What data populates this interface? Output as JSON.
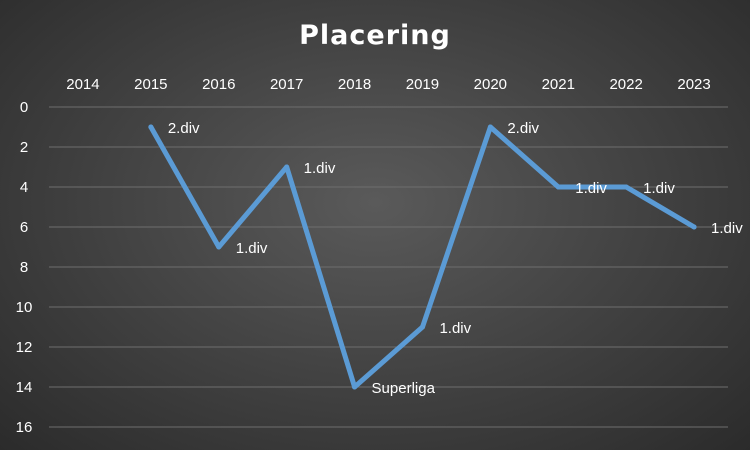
{
  "chart_data": {
    "type": "line",
    "title": "Placering",
    "x": [
      "2014",
      "2015",
      "2016",
      "2017",
      "2018",
      "2019",
      "2020",
      "2021",
      "2022",
      "2023"
    ],
    "series": [
      {
        "values": [
          null,
          1,
          7,
          3,
          14,
          11,
          1,
          4,
          4,
          6
        ],
        "labels": [
          null,
          "2.div",
          "1.div",
          "1.div",
          "Superliga",
          "1.div",
          "2.div",
          "1.div",
          "1.div",
          "1.div"
        ],
        "color": "#5b9bd5"
      }
    ],
    "y_ticks": [
      "0",
      "2",
      "4",
      "6",
      "8",
      "10",
      "12",
      "14",
      "16"
    ],
    "ylim": [
      0,
      16
    ],
    "y_reversed": true,
    "x_axis_position": "top",
    "grid": true,
    "legend": "none"
  }
}
